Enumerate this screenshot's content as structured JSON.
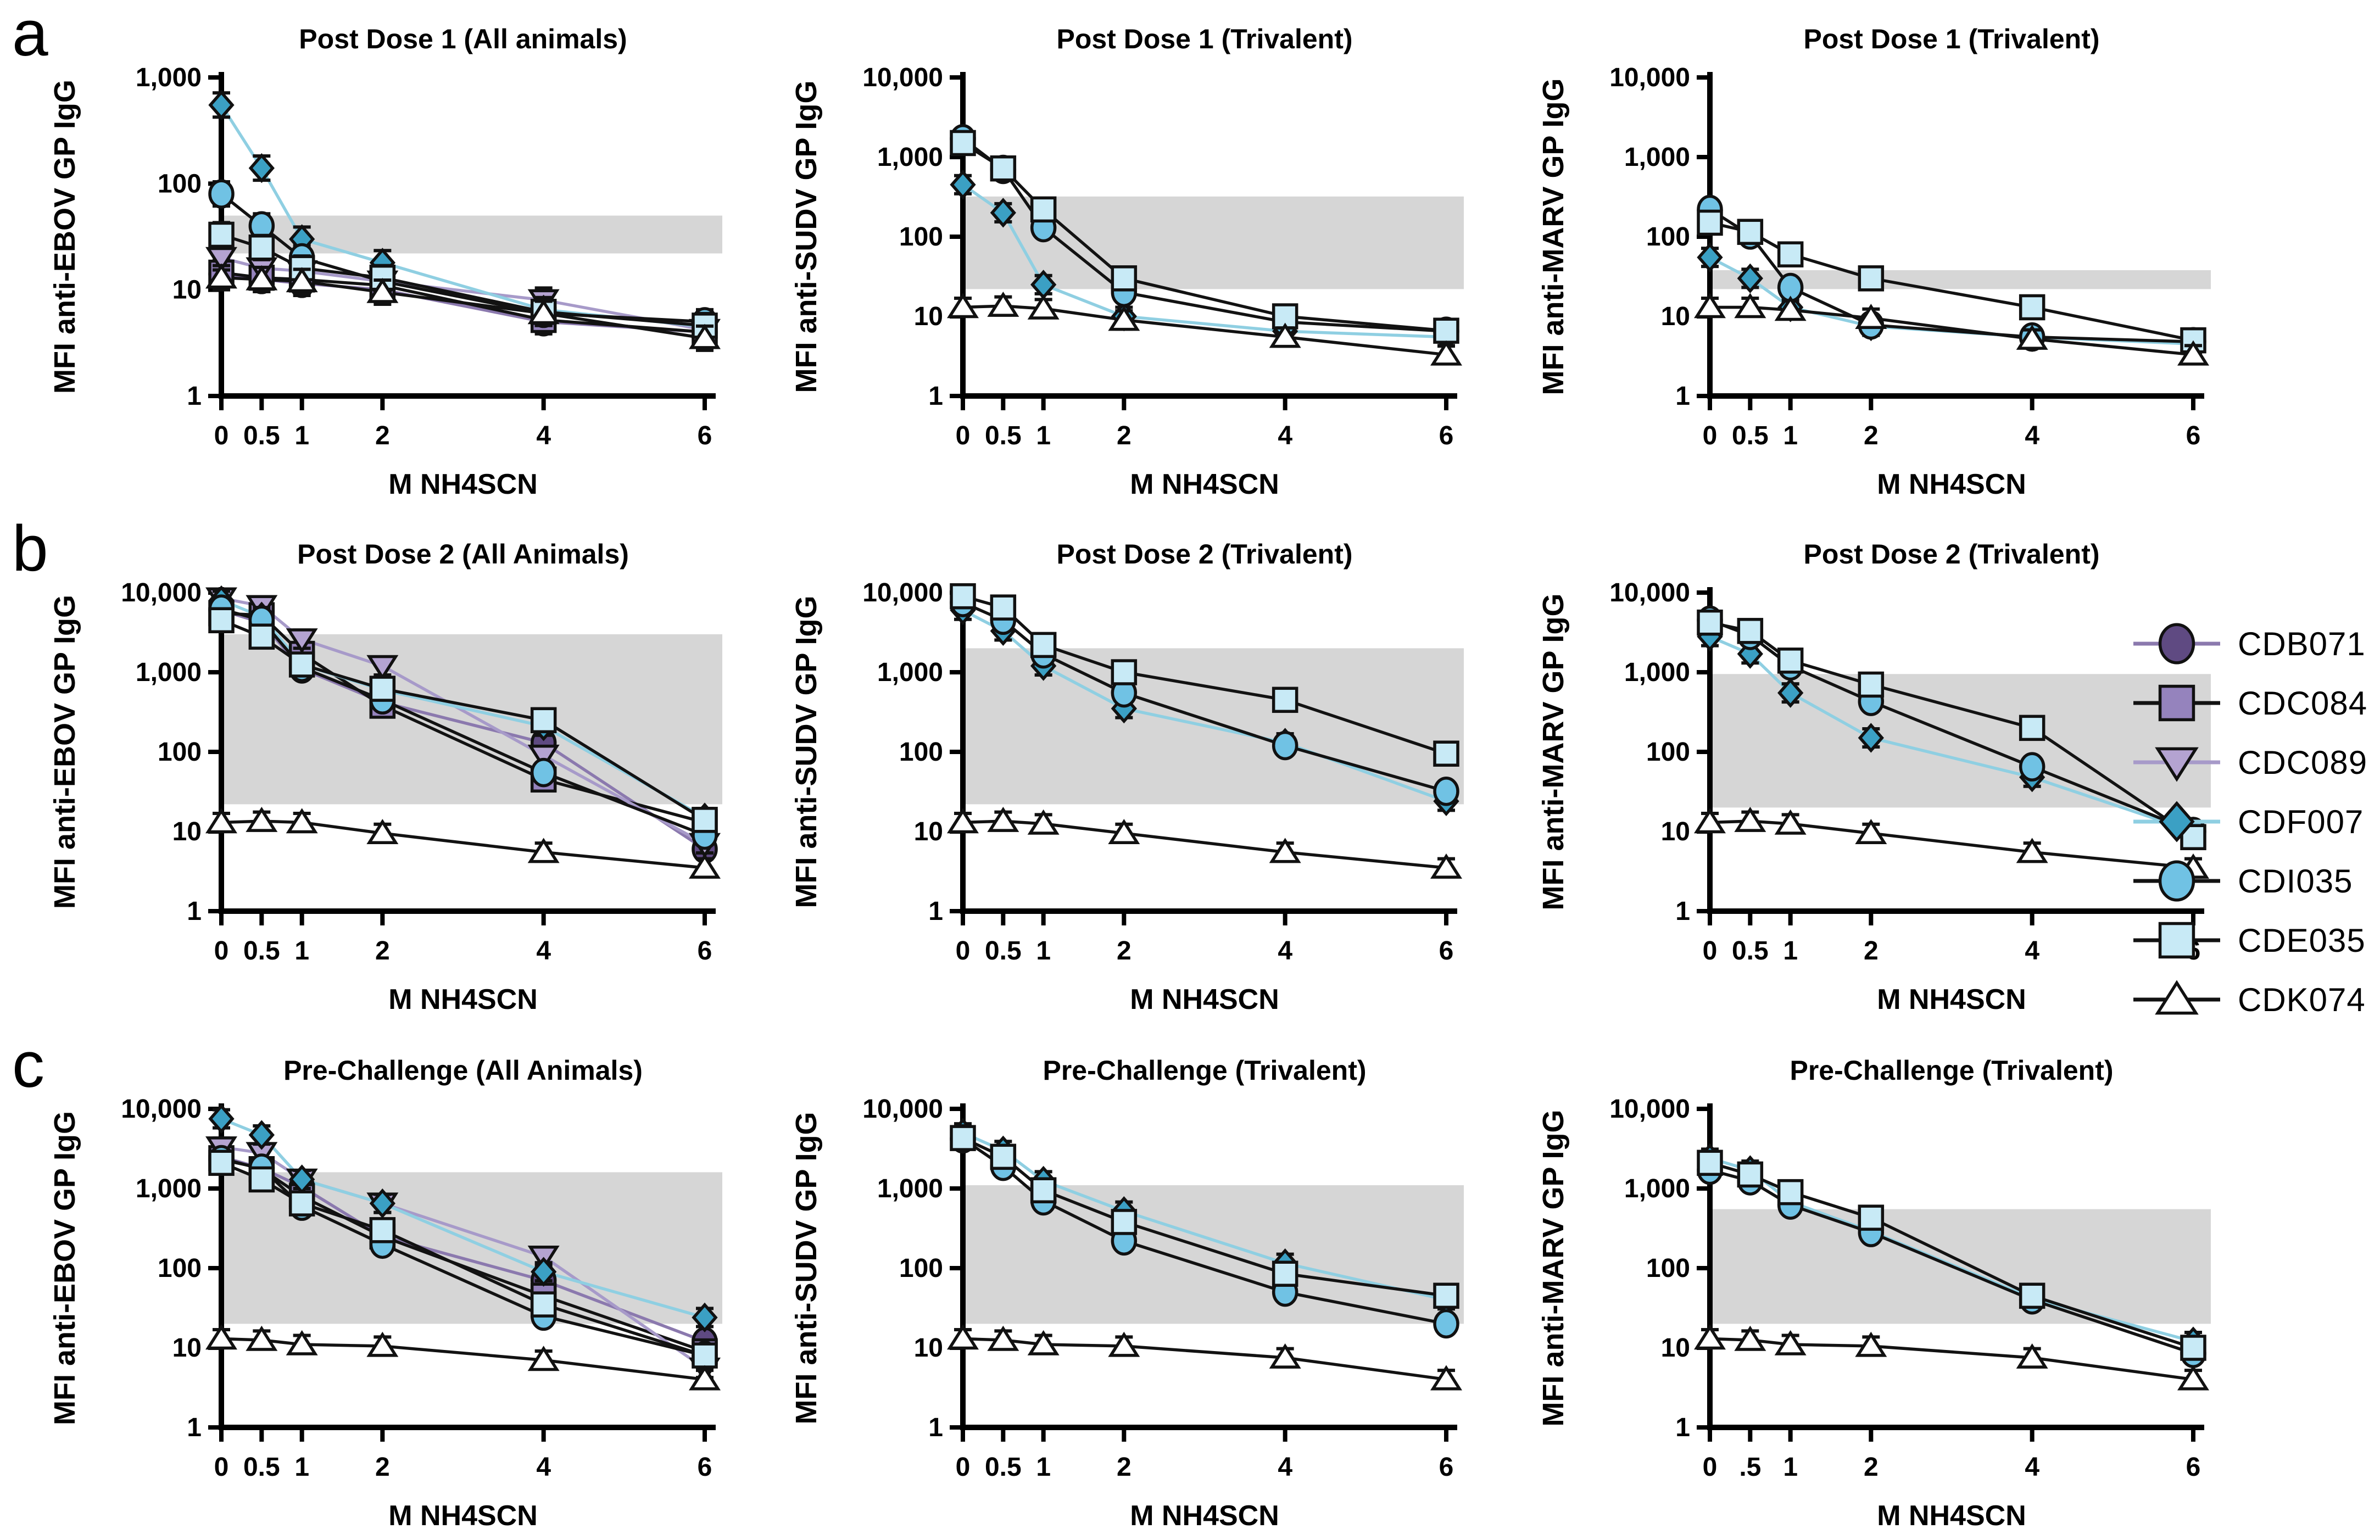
{
  "figure": {
    "letters": [
      "a",
      "b",
      "c"
    ],
    "xlabel": "M NH4SCN",
    "band_color": "#d6d6d6",
    "axis_color": "#000000",
    "error_bar_factor": 1.3
  },
  "letters": [
    "a",
    "b",
    "c"
  ],
  "legend": {
    "items": [
      {
        "id": "CDB071",
        "label": "CDB071",
        "marker": "circle",
        "fill": "#5f4a82",
        "line": "#8b79ae"
      },
      {
        "id": "CDC084",
        "label": "CDC084",
        "marker": "square",
        "fill": "#9583bd",
        "line": "#121212"
      },
      {
        "id": "CDC089",
        "label": "CDC089",
        "marker": "triangle-down",
        "fill": "#b4a3d1",
        "line": "#a79ac9"
      },
      {
        "id": "CDF007",
        "label": "CDF007",
        "marker": "diamond",
        "fill": "#3ba0c4",
        "line": "#8fcfe2"
      },
      {
        "id": "CDI035",
        "label": "CDI035",
        "marker": "circle",
        "fill": "#70c2e4",
        "line": "#121212"
      },
      {
        "id": "CDE035",
        "label": "CDE035",
        "marker": "square",
        "fill": "#c8eaf6",
        "line": "#121212"
      },
      {
        "id": "CDK074",
        "label": "CDK074",
        "marker": "triangle-up",
        "fill": "#ffffff",
        "line": "#121212"
      }
    ]
  },
  "chart_data": [
    {
      "type": "line",
      "row": 0,
      "col": 0,
      "title": "Post Dose 1 (All animals)",
      "ylabel": "MFI anti-EBOV GP IgG",
      "xlabel": "M NH4SCN",
      "x": [
        0,
        0.5,
        1,
        2,
        4,
        6
      ],
      "xtick_labels": [
        "0",
        "0.5",
        "1",
        "2",
        "4",
        "6"
      ],
      "ylim": [
        1,
        1000
      ],
      "ytick_labels": [
        "1",
        "10",
        "100",
        "1,000"
      ],
      "band": [
        22,
        50
      ],
      "grid": false,
      "series": [
        {
          "name": "CDB071",
          "values": [
            14,
            12.5,
            11.5,
            10,
            5,
            4
          ]
        },
        {
          "name": "CDC084",
          "values": [
            14.5,
            13,
            12.5,
            11,
            5.2,
            4
          ]
        },
        {
          "name": "CDC089",
          "values": [
            20,
            16,
            15,
            12,
            8,
            4.2
          ]
        },
        {
          "name": "CDF007",
          "values": [
            550,
            140,
            30,
            18,
            6.5,
            4.5
          ]
        },
        {
          "name": "CDI035",
          "values": [
            80,
            40,
            20,
            12,
            6,
            5
          ]
        },
        {
          "name": "CDE035",
          "values": [
            33,
            25,
            16,
            13,
            6.2,
            4.6
          ]
        },
        {
          "name": "CDK074",
          "values": [
            13,
            12.5,
            12,
            9.5,
            6,
            3.5
          ]
        }
      ]
    },
    {
      "type": "line",
      "row": 0,
      "col": 1,
      "title": "Post Dose 1 (Trivalent)",
      "ylabel": "MFI anti-SUDV GP IgG",
      "xlabel": "M NH4SCN",
      "x": [
        0,
        0.5,
        1,
        2,
        4,
        6
      ],
      "xtick_labels": [
        "0",
        "0.5",
        "1",
        "2",
        "4",
        "6"
      ],
      "ylim": [
        1,
        10000
      ],
      "ytick_labels": [
        "1",
        "10",
        "100",
        "1,000",
        "10,000"
      ],
      "band": [
        22,
        320
      ],
      "grid": false,
      "series": [
        {
          "name": "CDF007",
          "values": [
            450,
            200,
            25,
            10,
            6.5,
            5.5
          ]
        },
        {
          "name": "CDI035",
          "values": [
            1700,
            700,
            130,
            20,
            8.5,
            6.5
          ]
        },
        {
          "name": "CDE035",
          "values": [
            1500,
            720,
            220,
            30,
            10,
            6.6
          ]
        },
        {
          "name": "CDK074",
          "values": [
            13,
            13.5,
            12.5,
            9,
            5.5,
            3.3
          ]
        }
      ]
    },
    {
      "type": "line",
      "row": 0,
      "col": 2,
      "title": "Post Dose 1 (Trivalent)",
      "ylabel": "MFI anti-MARV GP IgG",
      "xlabel": "M NH4SCN",
      "x": [
        0,
        0.5,
        1,
        2,
        4,
        6
      ],
      "xtick_labels": [
        "0",
        "0.5",
        "1",
        "2",
        "4",
        "6"
      ],
      "ylim": [
        1,
        10000
      ],
      "ytick_labels": [
        "1",
        "10",
        "100",
        "1,000",
        "10,000"
      ],
      "band": [
        22,
        38
      ],
      "grid": false,
      "series": [
        {
          "name": "CDF007",
          "values": [
            55,
            30,
            13,
            7.5,
            5.5,
            4.5
          ]
        },
        {
          "name": "CDI035",
          "values": [
            220,
            105,
            23,
            7.8,
            5.5,
            4.8
          ]
        },
        {
          "name": "CDE035",
          "values": [
            150,
            115,
            60,
            30,
            13,
            5
          ]
        },
        {
          "name": "CDK074",
          "values": [
            13,
            13,
            12,
            9.5,
            5.2,
            3.3
          ]
        }
      ]
    },
    {
      "type": "line",
      "row": 1,
      "col": 0,
      "title": "Post Dose 2 (All Animals)",
      "ylabel": "MFI anti-EBOV GP IgG",
      "xlabel": "M NH4SCN",
      "x": [
        0,
        0.5,
        1,
        2,
        4,
        6
      ],
      "xtick_labels": [
        "0",
        "0.5",
        "1",
        "2",
        "4",
        "6"
      ],
      "ylim": [
        1,
        10000
      ],
      "ytick_labels": [
        "1",
        "10",
        "100",
        "1,000",
        "10,000"
      ],
      "band": [
        22,
        3000
      ],
      "grid": false,
      "series": [
        {
          "name": "CDB071",
          "values": [
            6000,
            4200,
            1100,
            420,
            130,
            6
          ]
        },
        {
          "name": "CDC084",
          "values": [
            5500,
            5200,
            1700,
            380,
            45,
            13
          ]
        },
        {
          "name": "CDC089",
          "values": [
            8500,
            6800,
            2600,
            1200,
            90,
            7
          ]
        },
        {
          "name": "CDF007",
          "values": [
            8000,
            5000,
            1250,
            600,
            210,
            15
          ]
        },
        {
          "name": "CDI035",
          "values": [
            6200,
            4500,
            1150,
            450,
            55,
            9
          ]
        },
        {
          "name": "CDE035",
          "values": [
            4500,
            2800,
            1250,
            620,
            250,
            14
          ]
        },
        {
          "name": "CDK074",
          "values": [
            13,
            13.5,
            13,
            9.5,
            5.5,
            3.5
          ]
        }
      ]
    },
    {
      "type": "line",
      "row": 1,
      "col": 1,
      "title": "Post Dose 2 (Trivalent)",
      "ylabel": "MFI anti-SUDV GP IgG",
      "xlabel": "M NH4SCN",
      "x": [
        0,
        0.5,
        1,
        2,
        4,
        6
      ],
      "xtick_labels": [
        "0",
        "0.5",
        "1",
        "2",
        "4",
        "6"
      ],
      "ylim": [
        1,
        10000
      ],
      "ytick_labels": [
        "1",
        "10",
        "100",
        "1,000",
        "10,000"
      ],
      "band": [
        22,
        2000
      ],
      "grid": false,
      "series": [
        {
          "name": "CDF007",
          "values": [
            6000,
            3300,
            1200,
            350,
            130,
            24
          ]
        },
        {
          "name": "CDI035",
          "values": [
            7500,
            4500,
            1700,
            550,
            120,
            32
          ]
        },
        {
          "name": "CDE035",
          "values": [
            9000,
            6500,
            2200,
            1000,
            450,
            95
          ]
        },
        {
          "name": "CDK074",
          "values": [
            13,
            13.5,
            12.5,
            9.5,
            5.5,
            3.5
          ]
        }
      ]
    },
    {
      "type": "line",
      "row": 1,
      "col": 2,
      "title": "Post Dose 2 (Trivalent)",
      "ylabel": "MFI anti-MARV GP IgG",
      "xlabel": "M NH4SCN",
      "x": [
        0,
        0.5,
        1,
        2,
        4,
        6
      ],
      "xtick_labels": [
        "0",
        "0.5",
        "1",
        "2",
        "4",
        "6"
      ],
      "ylim": [
        1,
        10000
      ],
      "ytick_labels": [
        "1",
        "10",
        "100",
        "1,000",
        "10,000"
      ],
      "band": [
        20,
        950
      ],
      "grid": false,
      "series": [
        {
          "name": "CDF007",
          "values": [
            2800,
            1700,
            550,
            150,
            48,
            10
          ]
        },
        {
          "name": "CDI035",
          "values": [
            4500,
            2900,
            1200,
            430,
            65,
            10
          ]
        },
        {
          "name": "CDE035",
          "values": [
            4200,
            3300,
            1400,
            700,
            200,
            8.5
          ]
        },
        {
          "name": "CDK074",
          "values": [
            13,
            13.5,
            12.5,
            9.5,
            5.5,
            3.5
          ]
        }
      ]
    },
    {
      "type": "line",
      "row": 2,
      "col": 0,
      "title": "Pre-Challenge (All Animals)",
      "ylabel": "MFI anti-EBOV GP IgG",
      "xlabel": "M NH4SCN",
      "x": [
        0,
        0.5,
        1,
        2,
        4,
        6
      ],
      "xtick_labels": [
        "0",
        "0.5",
        "1",
        "2",
        "4",
        "6"
      ],
      "ylim": [
        1,
        10000
      ],
      "ytick_labels": [
        "1",
        "10",
        "100",
        "1,000",
        "10,000"
      ],
      "band": [
        20,
        1600
      ],
      "grid": false,
      "series": [
        {
          "name": "CDB071",
          "values": [
            2500,
            1800,
            1050,
            250,
            70,
            12
          ]
        },
        {
          "name": "CDC084",
          "values": [
            2400,
            1750,
            800,
            250,
            45,
            9
          ]
        },
        {
          "name": "CDC089",
          "values": [
            3300,
            2800,
            1300,
            650,
            140,
            5.5
          ]
        },
        {
          "name": "CDF007",
          "values": [
            7500,
            4700,
            1300,
            650,
            90,
            24
          ]
        },
        {
          "name": "CDI035",
          "values": [
            2300,
            1800,
            600,
            200,
            25,
            8
          ]
        },
        {
          "name": "CDE035",
          "values": [
            2100,
            1300,
            650,
            300,
            35,
            8
          ]
        },
        {
          "name": "CDK074",
          "values": [
            13,
            12.5,
            11,
            10.5,
            7,
            4
          ]
        }
      ]
    },
    {
      "type": "line",
      "row": 2,
      "col": 1,
      "title": "Pre-Challenge (Trivalent)",
      "ylabel": "MFI anti-SUDV GP IgG",
      "xlabel": "M NH4SCN",
      "x": [
        0,
        0.5,
        1,
        2,
        4,
        6
      ],
      "xtick_labels": [
        "0",
        "0.5",
        "1",
        "2",
        "4",
        "6"
      ],
      "ylim": [
        1,
        10000
      ],
      "ytick_labels": [
        "1",
        "10",
        "100",
        "1,000",
        "10,000"
      ],
      "band": [
        20,
        1100
      ],
      "grid": false,
      "series": [
        {
          "name": "CDF007",
          "values": [
            5000,
            3000,
            1250,
            520,
            115,
            40
          ]
        },
        {
          "name": "CDI035",
          "values": [
            4200,
            1900,
            700,
            220,
            50,
            20
          ]
        },
        {
          "name": "CDE035",
          "values": [
            4300,
            2500,
            950,
            380,
            85,
            45
          ]
        },
        {
          "name": "CDK074",
          "values": [
            13,
            12.5,
            11,
            10.5,
            7.5,
            4
          ]
        }
      ]
    },
    {
      "type": "line",
      "row": 2,
      "col": 2,
      "title": "Pre-Challenge (Trivalent)",
      "ylabel": "MFI anti-MARV GP IgG",
      "xlabel": "M NH4SCN",
      "x": [
        0,
        0.5,
        1,
        2,
        4,
        6
      ],
      "xtick_labels": [
        "0",
        ".5",
        "1",
        "2",
        "4",
        "6"
      ],
      "ylim": [
        1,
        10000
      ],
      "ytick_labels": [
        "1",
        "10",
        "100",
        "1,000",
        "10,000"
      ],
      "band": [
        20,
        550
      ],
      "grid": false,
      "series": [
        {
          "name": "CDF007",
          "values": [
            2400,
            1700,
            680,
            290,
            42,
            12
          ]
        },
        {
          "name": "CDI035",
          "values": [
            1700,
            1250,
            620,
            280,
            40,
            8.5
          ]
        },
        {
          "name": "CDE035",
          "values": [
            2100,
            1500,
            900,
            430,
            45,
            10
          ]
        },
        {
          "name": "CDK074",
          "values": [
            13,
            12.5,
            11,
            10.5,
            7.5,
            4
          ]
        }
      ]
    }
  ]
}
